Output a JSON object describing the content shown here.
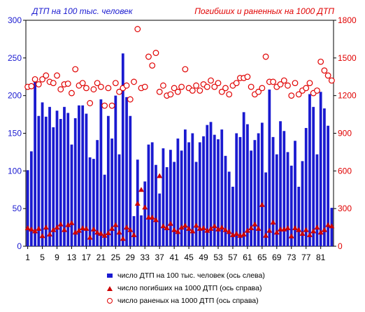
{
  "titles": {
    "left": "ДТП на 100 тыс. человек",
    "right": "Погибших и раненных на 1000 ДТП"
  },
  "legend": {
    "bars": "число ДТП на 100 тыс. человек (ось слева)",
    "deaths": "число погибших на 1000 ДТП (ось справа)",
    "injured": "число раненых на 1000 ДТП (ось справа)"
  },
  "chart_data": {
    "type": "bar",
    "x_ticks": [
      1,
      5,
      9,
      13,
      17,
      21,
      25,
      29,
      33,
      37,
      41,
      45,
      49,
      53,
      57,
      61,
      65,
      69,
      73,
      77,
      81
    ],
    "left_axis": {
      "min": 0,
      "max": 300,
      "ticks": [
        0,
        50,
        100,
        150,
        200,
        250,
        300
      ]
    },
    "right_axis": {
      "min": 0,
      "max": 1800,
      "ticks": [
        0,
        300,
        600,
        900,
        1200,
        1500,
        1800
      ]
    },
    "colors": {
      "bars": "#1a1ad0",
      "deaths": "#cc0000",
      "injured": "#e00000",
      "left_axis": "#1a1ad0",
      "right_axis": "#e00000"
    },
    "series": [
      {
        "name": "число ДТП на 100 тыс. человек (ось слева)",
        "axis": "left",
        "values": [
          101,
          126,
          222,
          173,
          191,
          172,
          185,
          158,
          180,
          169,
          185,
          177,
          135,
          170,
          187,
          187,
          176,
          118,
          116,
          141,
          195,
          95,
          173,
          143,
          200,
          122,
          256,
          198,
          173,
          40,
          115,
          41,
          86,
          135,
          138,
          108,
          70,
          130,
          105,
          128,
          112,
          143,
          127,
          155,
          138,
          150,
          112,
          138,
          146,
          161,
          165,
          148,
          142,
          155,
          120,
          99,
          79,
          150,
          145,
          178,
          162,
          127,
          141,
          150,
          164,
          98,
          208,
          145,
          122,
          166,
          153,
          125,
          107,
          140,
          79,
          113,
          157,
          202,
          185,
          122,
          205,
          183,
          160,
          51
        ],
        "x": [
          1,
          2,
          3,
          4,
          5,
          6,
          7,
          8,
          9,
          10,
          11,
          12,
          13,
          14,
          15,
          16,
          17,
          18,
          19,
          20,
          21,
          22,
          23,
          24,
          25,
          26,
          27,
          28,
          29,
          30,
          31,
          32,
          33,
          34,
          35,
          36,
          37,
          38,
          39,
          40,
          41,
          42,
          43,
          44,
          45,
          46,
          47,
          48,
          49,
          50,
          51,
          52,
          53,
          54,
          55,
          56,
          57,
          58,
          59,
          60,
          61,
          62,
          63,
          64,
          65,
          66,
          67,
          68,
          69,
          70,
          71,
          72,
          73,
          74,
          75,
          76,
          77,
          78,
          79,
          80,
          81,
          82,
          83,
          84
        ]
      },
      {
        "name": "число погибших на 1000 ДТП (ось справа)",
        "axis": "right",
        "values": [
          145,
          135,
          120,
          140,
          82,
          150,
          95,
          130,
          150,
          175,
          130,
          170,
          185,
          110,
          125,
          145,
          140,
          70,
          135,
          110,
          100,
          85,
          105,
          140,
          170,
          110,
          60,
          150,
          130,
          90,
          340,
          450,
          310,
          230,
          230,
          210,
          560,
          160,
          145,
          180,
          130,
          115,
          150,
          165,
          140,
          120,
          165,
          140,
          145,
          125,
          140,
          160,
          135,
          150,
          130,
          115,
          90,
          100,
          85,
          95,
          125,
          145,
          175,
          140,
          330,
          85,
          125,
          190,
          110,
          135,
          135,
          145,
          80,
          145,
          130,
          100,
          130,
          90,
          120,
          150,
          110,
          130,
          170,
          160
        ],
        "x": [
          1,
          2,
          3,
          4,
          5,
          6,
          7,
          8,
          9,
          10,
          11,
          12,
          13,
          14,
          15,
          16,
          17,
          18,
          19,
          20,
          21,
          22,
          23,
          24,
          25,
          26,
          27,
          28,
          29,
          30,
          31,
          32,
          33,
          34,
          35,
          36,
          37,
          38,
          39,
          40,
          41,
          42,
          43,
          44,
          45,
          46,
          47,
          48,
          49,
          50,
          51,
          52,
          53,
          54,
          55,
          56,
          57,
          58,
          59,
          60,
          61,
          62,
          63,
          64,
          65,
          66,
          67,
          68,
          69,
          70,
          71,
          72,
          73,
          74,
          75,
          76,
          77,
          78,
          79,
          80,
          81,
          82,
          83,
          84
        ]
      },
      {
        "name": "число раненых на 1000 ДТП (ось справа)",
        "axis": "right",
        "values": [
          1270,
          1275,
          1330,
          1290,
          1330,
          1360,
          1310,
          1300,
          1360,
          1250,
          1290,
          1295,
          1220,
          1410,
          1280,
          1300,
          1260,
          1140,
          1250,
          1300,
          1270,
          1120,
          1260,
          1120,
          1300,
          1230,
          1260,
          1280,
          1170,
          1310,
          1730,
          1260,
          1270,
          1510,
          1440,
          1540,
          1230,
          1280,
          1200,
          1210,
          1260,
          1230,
          1270,
          1410,
          1260,
          1240,
          1280,
          1240,
          1290,
          1270,
          1320,
          1270,
          1300,
          1230,
          1260,
          1210,
          1280,
          1300,
          1340,
          1340,
          1350,
          1270,
          1210,
          1230,
          1260,
          1510,
          1310,
          1310,
          1270,
          1290,
          1320,
          1280,
          1200,
          1300,
          1210,
          1240,
          1260,
          1300,
          1220,
          1240,
          1470,
          1400,
          1360,
          1320
        ],
        "x": [
          1,
          2,
          3,
          4,
          5,
          6,
          7,
          8,
          9,
          10,
          11,
          12,
          13,
          14,
          15,
          16,
          17,
          18,
          19,
          20,
          21,
          22,
          23,
          24,
          25,
          26,
          27,
          28,
          29,
          30,
          31,
          32,
          33,
          34,
          35,
          36,
          37,
          38,
          39,
          40,
          41,
          42,
          43,
          44,
          45,
          46,
          47,
          48,
          49,
          50,
          51,
          52,
          53,
          54,
          55,
          56,
          57,
          58,
          59,
          60,
          61,
          62,
          63,
          64,
          65,
          66,
          67,
          68,
          69,
          70,
          71,
          72,
          73,
          74,
          75,
          76,
          77,
          78,
          79,
          80,
          81,
          82,
          83,
          84
        ]
      }
    ],
    "grid": false,
    "legend_position": "bottom"
  }
}
